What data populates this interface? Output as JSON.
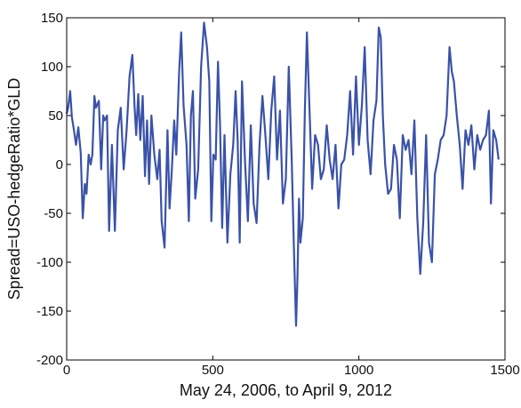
{
  "chart_data": {
    "type": "line",
    "title": "",
    "xlabel": "May 24, 2006, to April 9, 2012",
    "ylabel": "Spread=USO-hedgeRatio*GLD",
    "xlim": [
      0,
      1500
    ],
    "ylim": [
      -200,
      150
    ],
    "xticks": [
      0,
      500,
      1000,
      1500
    ],
    "yticks": [
      150,
      100,
      50,
      0,
      -50,
      -100,
      -150,
      -200
    ],
    "grid": false,
    "legend": "none",
    "series": [
      {
        "color": "#3A52A8",
        "x": [
          0,
          5,
          12,
          18,
          25,
          32,
          40,
          48,
          55,
          62,
          68,
          75,
          82,
          88,
          95,
          100,
          110,
          118,
          125,
          130,
          138,
          145,
          155,
          165,
          175,
          185,
          195,
          205,
          215,
          225,
          232,
          238,
          245,
          252,
          260,
          268,
          275,
          282,
          290,
          300,
          310,
          318,
          325,
          335,
          345,
          352,
          360,
          368,
          375,
          385,
          392,
          400,
          410,
          418,
          425,
          432,
          440,
          450,
          460,
          470,
          480,
          488,
          495,
          502,
          510,
          518,
          525,
          532,
          540,
          550,
          560,
          570,
          578,
          585,
          592,
          600,
          610,
          620,
          630,
          640,
          650,
          660,
          670,
          680,
          690,
          700,
          710,
          720,
          730,
          740,
          750,
          760,
          770,
          778,
          785,
          790,
          795,
          800,
          808,
          815,
          822,
          830,
          840,
          850,
          860,
          870,
          880,
          890,
          900,
          910,
          920,
          930,
          940,
          950,
          960,
          970,
          980,
          990,
          1000,
          1010,
          1020,
          1030,
          1040,
          1050,
          1060,
          1068,
          1075,
          1082,
          1090,
          1100,
          1110,
          1120,
          1130,
          1140,
          1150,
          1160,
          1170,
          1180,
          1190,
          1200,
          1210,
          1220,
          1230,
          1240,
          1250,
          1260,
          1270,
          1280,
          1290,
          1300,
          1310,
          1318,
          1325,
          1335,
          1345,
          1355,
          1365,
          1375,
          1385,
          1395,
          1405,
          1415,
          1425,
          1435,
          1445,
          1452,
          1460,
          1470,
          1478
        ],
        "values": [
          52,
          58,
          75,
          48,
          35,
          20,
          38,
          12,
          -55,
          -20,
          -30,
          10,
          0,
          10,
          70,
          58,
          65,
          -5,
          50,
          45,
          50,
          -68,
          20,
          -68,
          35,
          58,
          -5,
          35,
          90,
          112,
          60,
          30,
          72,
          25,
          70,
          -12,
          45,
          -20,
          50,
          10,
          -15,
          15,
          -58,
          -85,
          35,
          -45,
          -5,
          45,
          10,
          95,
          135,
          60,
          20,
          -58,
          50,
          75,
          -35,
          -5,
          100,
          145,
          120,
          85,
          -58,
          10,
          5,
          105,
          40,
          -65,
          30,
          -80,
          -10,
          20,
          75,
          25,
          -80,
          85,
          5,
          -58,
          40,
          -40,
          -60,
          20,
          70,
          30,
          -15,
          55,
          90,
          5,
          55,
          -40,
          -15,
          100,
          5,
          -90,
          -165,
          -115,
          -35,
          -80,
          -55,
          55,
          135,
          65,
          -25,
          30,
          20,
          -15,
          -5,
          40,
          5,
          -15,
          20,
          -45,
          0,
          5,
          30,
          75,
          10,
          90,
          20,
          60,
          120,
          25,
          -10,
          45,
          65,
          140,
          130,
          50,
          0,
          -30,
          -25,
          20,
          5,
          -55,
          30,
          15,
          25,
          -10,
          45,
          -55,
          -112,
          -60,
          30,
          -80,
          -100,
          -10,
          5,
          25,
          30,
          50,
          120,
          95,
          85,
          50,
          20,
          -25,
          35,
          20,
          40,
          -5,
          30,
          15,
          25,
          30,
          55,
          -40,
          35,
          25,
          5
        ]
      }
    ]
  }
}
